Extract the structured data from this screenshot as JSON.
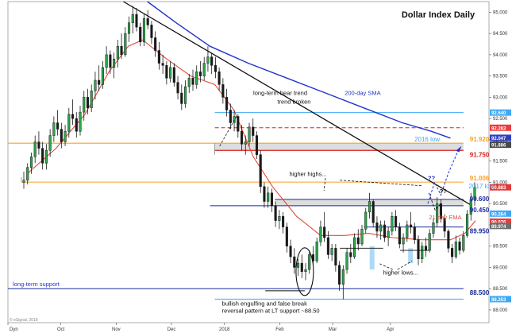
{
  "chart_data": {
    "type": "candlestick",
    "title": "Dollar Index Daily",
    "credit": "© eSignal, 2018",
    "x_tick_labels": [
      "Dyn",
      "Oct",
      "Nov",
      "Dec",
      "2018",
      "Feb",
      "Mar",
      "Apr"
    ],
    "y_tick_labels": [
      "95.000",
      "94.500",
      "94.000",
      "93.500",
      "93.000",
      "92.500",
      "92.000",
      "91.500",
      "91.000",
      "90.500",
      "90.000",
      "89.500",
      "89.000",
      "88.500",
      "88.000"
    ],
    "ylim": [
      87.7,
      95.25
    ],
    "grid": false,
    "price_markers": [
      {
        "value": 92.64,
        "label": "92.640",
        "color": "#3fa9f5"
      },
      {
        "value": 92.283,
        "label": "92.283",
        "color": "#ef3b3b"
      },
      {
        "value": 92.047,
        "label": "92.047",
        "color": "#2f3fbf"
      },
      {
        "value": 91.886,
        "label": "91.886",
        "color": "#4a4a4a"
      },
      {
        "value": 90.883,
        "label": "90.883",
        "color": "#e03a3a"
      },
      {
        "value": 90.264,
        "label": "90.264",
        "color": "#3fa9f5"
      },
      {
        "value": 90.076,
        "label": "90.076",
        "color": "#ef3b3b"
      },
      {
        "value": 89.974,
        "label": "89.974",
        "color": "#6e6e6e"
      },
      {
        "value": 88.253,
        "label": "88.253",
        "color": "#3fa9f5"
      }
    ],
    "levels": [
      {
        "value": 91.92,
        "label": "91.920",
        "color": "#f7a128"
      },
      {
        "value": 91.75,
        "label": "91.750",
        "color": "#d42020"
      },
      {
        "value": 91.006,
        "label": "91.006",
        "color": "#f7a128"
      },
      {
        "value": 90.6,
        "label": "90.600",
        "color": "#1a2a9a"
      },
      {
        "value": 90.45,
        "label": "90.450",
        "color": "#1a2a9a"
      },
      {
        "value": 89.95,
        "label": "89.950",
        "color": "#1a2a9a"
      },
      {
        "value": 88.5,
        "label": "88.500",
        "color": "#1a2a9a"
      }
    ],
    "annotations": {
      "bear_trend": "long-term bear trend broken",
      "sma200": "200-day SMA",
      "low2016": "2016 low",
      "low2017": "2017 low",
      "higher_highs": "higher highs...",
      "ema21": "21-day EMA",
      "higher_lows": "higher lows...",
      "lt_support": "long-term support",
      "bullish_line1": "bullish engulfing and false break",
      "bullish_line2": "reversal pattern at LT support ~88.50",
      "q1": "??",
      "q2": "??"
    },
    "candles_ohlc": [
      [
        91.0,
        91.25,
        90.85,
        91.05
      ],
      [
        91.05,
        91.45,
        90.95,
        91.35
      ],
      [
        91.35,
        91.7,
        91.2,
        91.6
      ],
      [
        91.6,
        92.1,
        91.45,
        91.95
      ],
      [
        91.95,
        92.2,
        91.65,
        91.8
      ],
      [
        91.8,
        91.95,
        91.3,
        91.45
      ],
      [
        91.45,
        91.9,
        91.3,
        91.75
      ],
      [
        91.75,
        92.25,
        91.6,
        92.1
      ],
      [
        92.1,
        92.55,
        91.95,
        92.4
      ],
      [
        92.4,
        92.7,
        92.1,
        92.25
      ],
      [
        92.25,
        92.4,
        91.8,
        91.95
      ],
      [
        91.95,
        92.35,
        91.85,
        92.2
      ],
      [
        92.2,
        92.75,
        92.05,
        92.6
      ],
      [
        92.6,
        92.95,
        92.35,
        92.5
      ],
      [
        92.5,
        92.65,
        92.05,
        92.2
      ],
      [
        92.2,
        92.8,
        92.1,
        92.65
      ],
      [
        92.65,
        93.15,
        92.45,
        93.0
      ],
      [
        93.0,
        93.2,
        92.6,
        92.75
      ],
      [
        92.75,
        93.3,
        92.65,
        93.15
      ],
      [
        93.15,
        93.6,
        92.95,
        93.4
      ],
      [
        93.4,
        93.75,
        93.15,
        93.3
      ],
      [
        93.3,
        93.85,
        93.2,
        93.7
      ],
      [
        93.7,
        94.2,
        93.55,
        94.0
      ],
      [
        94.0,
        94.1,
        93.55,
        93.7
      ],
      [
        93.7,
        94.05,
        93.45,
        93.9
      ],
      [
        93.9,
        94.35,
        93.7,
        94.2
      ],
      [
        94.2,
        94.5,
        93.9,
        94.0
      ],
      [
        94.0,
        94.65,
        93.95,
        94.5
      ],
      [
        94.5,
        94.9,
        94.3,
        94.75
      ],
      [
        94.75,
        95.15,
        94.5,
        94.95
      ],
      [
        94.95,
        95.1,
        94.55,
        94.65
      ],
      [
        94.65,
        94.75,
        94.2,
        94.3
      ],
      [
        94.3,
        94.95,
        94.2,
        94.85
      ],
      [
        94.85,
        95.05,
        94.6,
        94.7
      ],
      [
        94.7,
        94.8,
        94.25,
        94.4
      ],
      [
        94.4,
        94.55,
        93.95,
        94.1
      ],
      [
        94.1,
        94.3,
        93.65,
        93.8
      ],
      [
        93.8,
        94.0,
        93.55,
        93.75
      ],
      [
        93.75,
        93.85,
        93.3,
        93.45
      ],
      [
        93.45,
        93.85,
        93.35,
        93.7
      ],
      [
        93.7,
        93.8,
        93.25,
        93.35
      ],
      [
        93.35,
        93.5,
        92.95,
        93.1
      ],
      [
        93.1,
        93.3,
        92.7,
        92.85
      ],
      [
        92.85,
        93.4,
        92.75,
        93.25
      ],
      [
        93.25,
        93.55,
        93.1,
        93.45
      ],
      [
        93.45,
        93.65,
        93.15,
        93.3
      ],
      [
        93.3,
        93.75,
        93.2,
        93.6
      ],
      [
        93.6,
        93.85,
        93.35,
        93.5
      ],
      [
        93.5,
        93.95,
        93.4,
        93.8
      ],
      [
        93.8,
        94.2,
        93.6,
        93.95
      ],
      [
        93.95,
        94.05,
        93.55,
        93.75
      ],
      [
        93.75,
        93.95,
        93.45,
        93.6
      ],
      [
        93.6,
        93.7,
        93.15,
        93.3
      ],
      [
        93.3,
        93.45,
        92.85,
        93.0
      ],
      [
        93.0,
        93.2,
        92.55,
        92.7
      ],
      [
        92.7,
        92.85,
        92.25,
        92.4
      ],
      [
        92.4,
        92.7,
        92.2,
        92.55
      ],
      [
        92.55,
        92.6,
        92.05,
        92.2
      ],
      [
        92.2,
        92.35,
        91.75,
        91.9
      ],
      [
        91.9,
        92.1,
        91.65,
        91.95
      ],
      [
        91.95,
        92.4,
        91.85,
        92.3
      ],
      [
        92.3,
        92.5,
        91.95,
        92.1
      ],
      [
        92.1,
        92.2,
        91.55,
        91.65
      ],
      [
        91.65,
        91.75,
        90.75,
        90.9
      ],
      [
        90.9,
        91.0,
        90.4,
        90.55
      ],
      [
        90.55,
        90.9,
        90.4,
        90.75
      ],
      [
        90.75,
        90.85,
        90.3,
        90.45
      ],
      [
        90.45,
        90.55,
        89.95,
        90.1
      ],
      [
        90.1,
        90.35,
        89.9,
        90.2
      ],
      [
        90.2,
        90.3,
        89.8,
        89.95
      ],
      [
        89.95,
        90.05,
        89.35,
        89.5
      ],
      [
        89.5,
        89.65,
        89.1,
        89.25
      ],
      [
        89.25,
        89.45,
        88.85,
        89.0
      ],
      [
        89.0,
        89.2,
        88.8,
        89.1
      ],
      [
        89.1,
        89.3,
        88.75,
        88.9
      ],
      [
        88.9,
        89.1,
        88.7,
        88.95
      ],
      [
        88.95,
        89.4,
        88.85,
        89.3
      ],
      [
        89.3,
        89.5,
        89.05,
        89.15
      ],
      [
        89.15,
        89.7,
        89.1,
        89.6
      ],
      [
        89.6,
        90.1,
        89.5,
        89.95
      ],
      [
        89.95,
        90.3,
        89.6,
        89.7
      ],
      [
        89.7,
        89.85,
        89.2,
        89.3
      ],
      [
        89.3,
        89.55,
        89.15,
        89.45
      ],
      [
        89.45,
        89.55,
        88.9,
        89.05
      ],
      [
        89.05,
        89.15,
        88.45,
        88.6
      ],
      [
        88.6,
        89.05,
        88.25,
        88.95
      ],
      [
        88.95,
        89.45,
        88.85,
        89.35
      ],
      [
        89.35,
        89.55,
        89.1,
        89.25
      ],
      [
        89.25,
        89.8,
        89.2,
        89.7
      ],
      [
        89.7,
        89.9,
        89.4,
        89.55
      ],
      [
        89.55,
        90.0,
        89.5,
        89.9
      ],
      [
        89.9,
        90.4,
        89.8,
        90.3
      ],
      [
        90.3,
        90.75,
        90.15,
        90.55
      ],
      [
        90.55,
        90.6,
        89.95,
        90.05
      ],
      [
        90.05,
        90.2,
        89.7,
        89.85
      ],
      [
        89.85,
        90.1,
        89.65,
        90.0
      ],
      [
        90.0,
        90.1,
        89.6,
        89.7
      ],
      [
        89.7,
        89.95,
        89.5,
        89.85
      ],
      [
        89.85,
        90.3,
        89.75,
        90.2
      ],
      [
        90.2,
        90.35,
        89.85,
        89.95
      ],
      [
        89.95,
        90.05,
        89.45,
        89.55
      ],
      [
        89.55,
        89.8,
        89.35,
        89.7
      ],
      [
        89.7,
        90.1,
        89.6,
        90.0
      ],
      [
        90.0,
        90.3,
        89.8,
        89.95
      ],
      [
        89.95,
        90.05,
        89.55,
        89.65
      ],
      [
        89.65,
        89.75,
        89.05,
        89.2
      ],
      [
        89.2,
        89.6,
        89.1,
        89.5
      ],
      [
        89.5,
        89.7,
        89.25,
        89.4
      ],
      [
        89.4,
        89.9,
        89.35,
        89.8
      ],
      [
        89.8,
        90.15,
        89.7,
        90.05
      ],
      [
        90.05,
        90.65,
        89.95,
        90.5
      ],
      [
        90.5,
        90.6,
        90.05,
        90.15
      ],
      [
        90.15,
        90.25,
        89.7,
        89.85
      ],
      [
        89.85,
        89.9,
        89.35,
        89.45
      ],
      [
        89.45,
        89.55,
        89.1,
        89.25
      ],
      [
        89.25,
        89.75,
        89.2,
        89.6
      ],
      [
        89.6,
        89.7,
        89.3,
        89.4
      ],
      [
        89.4,
        89.85,
        89.35,
        89.75
      ],
      [
        89.75,
        90.35,
        89.7,
        90.25
      ],
      [
        90.25,
        90.75,
        90.1,
        90.6
      ],
      [
        90.6,
        91.0,
        90.45,
        90.88
      ]
    ],
    "sma200": [
      [
        0.29,
        95.25
      ],
      [
        0.35,
        94.75
      ],
      [
        0.42,
        94.2
      ],
      [
        0.5,
        93.8
      ],
      [
        0.58,
        93.45
      ],
      [
        0.66,
        93.1
      ],
      [
        0.74,
        92.75
      ],
      [
        0.82,
        92.4
      ],
      [
        0.88,
        92.2
      ],
      [
        0.92,
        92.04
      ]
    ],
    "ema21": [
      [
        0.04,
        91.2
      ],
      [
        0.1,
        91.8
      ],
      [
        0.16,
        92.6
      ],
      [
        0.21,
        93.6
      ],
      [
        0.25,
        94.2
      ],
      [
        0.28,
        94.35
      ],
      [
        0.33,
        93.9
      ],
      [
        0.38,
        93.5
      ],
      [
        0.43,
        93.3
      ],
      [
        0.47,
        92.7
      ],
      [
        0.51,
        91.6
      ],
      [
        0.55,
        90.9
      ],
      [
        0.6,
        90.2
      ],
      [
        0.65,
        89.75
      ],
      [
        0.7,
        89.75
      ],
      [
        0.75,
        89.8
      ],
      [
        0.8,
        89.7
      ],
      [
        0.86,
        89.65
      ],
      [
        0.92,
        89.65
      ],
      [
        0.95,
        89.8
      ],
      [
        0.972,
        90.1
      ]
    ],
    "bear_trendline": [
      [
        0.24,
        95.25
      ],
      [
        0.965,
        90.45
      ]
    ]
  }
}
